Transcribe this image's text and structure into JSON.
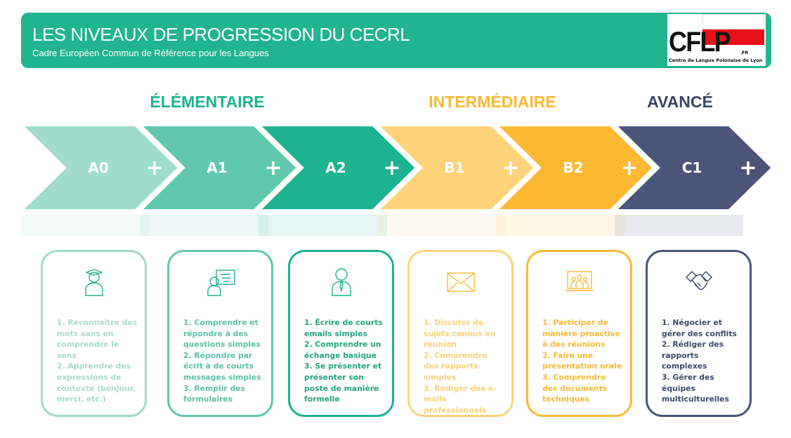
{
  "header": {
    "title": "LES NIVEAUX DE PROGRESSION DU CECRL",
    "subtitle": "Cadre Européen Commun de Référence pour les Langues",
    "logo": {
      "text": "CFLP",
      "suffix": ".FR",
      "tagline": "Centre de Langue Polonaise de Lyon"
    }
  },
  "groups": [
    {
      "label": "ÉLÉMENTAIRE",
      "color": "#1db38f"
    },
    {
      "label": "INTERMÉDIAIRE",
      "color": "#fdb933"
    },
    {
      "label": "AVANCÉ",
      "color": "#3a4466"
    }
  ],
  "levels": [
    {
      "label": "A0",
      "color": "#9fdccb",
      "text_color": "#a6dccc",
      "icon": "graduate-icon",
      "items": [
        "1. Reconnaître des mots sans en comprendre le sens",
        "2. Apprendre des expressions de contexte (bonjour, merci, etc.)"
      ]
    },
    {
      "label": "A1",
      "color": "#5fc8ae",
      "text_color": "#5cc1a6",
      "icon": "presenter-board-icon",
      "items": [
        "1. Comprendre et répondre à des questions simples",
        "2. Répondre par écrit à de courts messages simples",
        "3. Remplir des formulaires"
      ]
    },
    {
      "label": "A2",
      "color": "#1db38f",
      "text_color": "#23a47f",
      "icon": "businessman-icon",
      "items": [
        "1. Écrire de courts emails simples",
        "2. Comprendre un échange basique",
        "3. Se présenter et présenter son poste de manière formelle"
      ]
    },
    {
      "label": "B1",
      "color": "#fed37a",
      "text_color": "#fcd07a",
      "icon": "envelope-icon",
      "items": [
        "1. Discuter de sujets connus en réunion",
        "2. Comprendre des rapports simples",
        "3. Rédiger des e-mails professionnels"
      ]
    },
    {
      "label": "B2",
      "color": "#fdb933",
      "text_color": "#f9b93a",
      "icon": "video-meeting-icon",
      "items": [
        "1. Participer de manière proactive à des réunions",
        "2. Faire une présentation orale",
        "3. Comprendre des documents techniques"
      ]
    },
    {
      "label": "C1",
      "color": "#4a5578",
      "text_color": "#3f4a6b",
      "icon": "handshake-icon",
      "items": [
        "1. Négocier et gérer des conflits",
        "2. Rédiger des rapports complexes",
        "3. Gérer des équipes multiculturelles"
      ]
    }
  ],
  "plus_symbol": "+"
}
